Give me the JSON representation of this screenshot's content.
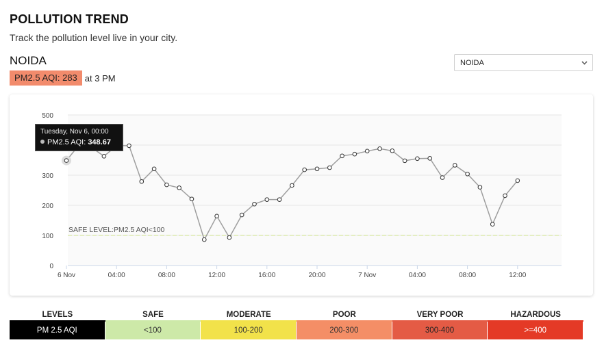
{
  "header": {
    "title": "POLLUTION TREND",
    "subtitle": "Track the pollution level live in your city."
  },
  "city": {
    "name": "NOIDA",
    "aqi_badge": "PM2.5 AQI: 283",
    "time_text": "at 3 PM"
  },
  "city_select": {
    "value": "NOIDA",
    "chevron_icon": "chevron-down-icon"
  },
  "tooltip": {
    "date": "Tuesday, Nov 6, 00:00",
    "label": "PM2.5 AQI:",
    "value": "348.67"
  },
  "chart_data": {
    "type": "line",
    "series": [
      {
        "values": [
          348.67,
          400,
          392,
          363,
          398,
          398,
          279,
          321,
          268,
          258,
          221,
          86,
          164,
          93,
          168,
          204,
          219,
          219,
          266,
          318,
          321,
          325,
          364,
          370,
          380,
          388,
          381,
          348,
          355,
          356,
          292,
          333,
          304,
          260,
          137,
          232,
          282
        ],
        "color": "#9e9e9e"
      }
    ],
    "x_labels": [
      "6 Nov",
      "04:00",
      "08:00",
      "12:00",
      "16:00",
      "20:00",
      "7 Nov",
      "04:00",
      "08:00",
      "12:00"
    ],
    "y_ticks": [
      0,
      100,
      200,
      300,
      400,
      500
    ],
    "ylim": [
      0,
      500
    ],
    "x_interval_hours": 1,
    "grid": true,
    "safe_level": {
      "value": 100,
      "label": "SAFE LEVEL:PM2.5 AQI<100",
      "color": "#d6e6a0"
    }
  },
  "levels": {
    "columns": [
      {
        "header": "LEVELS",
        "value": "PM 2.5 AQI",
        "bg": "#000000",
        "fg": "#ffffff",
        "underline": "#000000"
      },
      {
        "header": "SAFE",
        "value": "<100",
        "bg": "#cde9a8",
        "fg": "#333333",
        "underline": "#cde9a8"
      },
      {
        "header": "MODERATE",
        "value": "100-200",
        "bg": "#f2e24a",
        "fg": "#333333",
        "underline": "#f2e24a"
      },
      {
        "header": "POOR",
        "value": "200-300",
        "bg": "#f48e66",
        "fg": "#333333",
        "underline": "#f48e66"
      },
      {
        "header": "VERY POOR",
        "value": "300-400",
        "bg": "#e45b45",
        "fg": "#222222",
        "underline": "#e45b45"
      },
      {
        "header": "HAZARDOUS",
        "value": ">=400",
        "bg": "#e43a26",
        "fg": "#ffffff",
        "underline": "#e43a26"
      }
    ]
  }
}
